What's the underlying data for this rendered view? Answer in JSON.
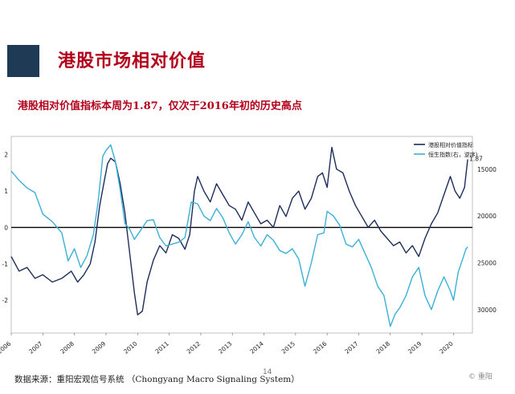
{
  "header": {
    "title": "港股市场相对价值"
  },
  "chart_data": {
    "type": "line",
    "title": "港股相对价值指标本周为1.87，仅次于2016年初的历史高点",
    "x_ticks": [
      "2006",
      "2007",
      "2008",
      "2009",
      "2010",
      "2011",
      "2012",
      "2013",
      "2014",
      "2015",
      "2016",
      "2017",
      "2018",
      "2019",
      "2020"
    ],
    "x_range": [
      2006.0,
      2020.6
    ],
    "y_left": {
      "ticks": [
        "2",
        "1",
        "0",
        "-1",
        "-2"
      ],
      "range": [
        -2.9,
        2.5
      ]
    },
    "y_right": {
      "ticks": [
        "15000",
        "20000",
        "25000",
        "30000"
      ],
      "range": [
        32500,
        11500
      ],
      "inverted": true
    },
    "grid": false,
    "legend_position": "top-right",
    "end_label": "1.87",
    "series": [
      {
        "name": "港股相对价值指标",
        "axis": "left",
        "color": "#1c2d5a",
        "points": [
          [
            2006.0,
            -0.8
          ],
          [
            2006.25,
            -1.2
          ],
          [
            2006.5,
            -1.1
          ],
          [
            2006.75,
            -1.4
          ],
          [
            2007.0,
            -1.3
          ],
          [
            2007.3,
            -1.5
          ],
          [
            2007.6,
            -1.4
          ],
          [
            2007.9,
            -1.2
          ],
          [
            2008.1,
            -1.5
          ],
          [
            2008.3,
            -1.3
          ],
          [
            2008.5,
            -1.0
          ],
          [
            2008.65,
            -0.4
          ],
          [
            2008.8,
            0.6
          ],
          [
            2008.95,
            1.3
          ],
          [
            2009.05,
            1.75
          ],
          [
            2009.15,
            1.9
          ],
          [
            2009.3,
            1.8
          ],
          [
            2009.45,
            1.2
          ],
          [
            2009.6,
            0.4
          ],
          [
            2009.75,
            -0.7
          ],
          [
            2009.9,
            -1.8
          ],
          [
            2010.0,
            -2.4
          ],
          [
            2010.15,
            -2.3
          ],
          [
            2010.3,
            -1.5
          ],
          [
            2010.5,
            -0.9
          ],
          [
            2010.7,
            -0.5
          ],
          [
            2010.9,
            -0.7
          ],
          [
            2011.1,
            -0.2
          ],
          [
            2011.3,
            -0.3
          ],
          [
            2011.5,
            -0.6
          ],
          [
            2011.65,
            -0.2
          ],
          [
            2011.8,
            1.0
          ],
          [
            2011.9,
            1.4
          ],
          [
            2012.1,
            1.0
          ],
          [
            2012.3,
            0.7
          ],
          [
            2012.5,
            1.2
          ],
          [
            2012.7,
            0.9
          ],
          [
            2012.9,
            0.6
          ],
          [
            2013.1,
            0.5
          ],
          [
            2013.3,
            0.2
          ],
          [
            2013.5,
            0.7
          ],
          [
            2013.7,
            0.4
          ],
          [
            2013.9,
            0.1
          ],
          [
            2014.1,
            0.2
          ],
          [
            2014.3,
            0.0
          ],
          [
            2014.5,
            0.6
          ],
          [
            2014.7,
            0.3
          ],
          [
            2014.9,
            0.8
          ],
          [
            2015.1,
            1.0
          ],
          [
            2015.3,
            0.5
          ],
          [
            2015.5,
            0.8
          ],
          [
            2015.7,
            1.4
          ],
          [
            2015.85,
            1.5
          ],
          [
            2016.0,
            1.1
          ],
          [
            2016.15,
            2.2
          ],
          [
            2016.3,
            1.6
          ],
          [
            2016.5,
            1.5
          ],
          [
            2016.7,
            1.0
          ],
          [
            2016.9,
            0.6
          ],
          [
            2017.1,
            0.3
          ],
          [
            2017.3,
            0.0
          ],
          [
            2017.5,
            0.2
          ],
          [
            2017.7,
            -0.1
          ],
          [
            2017.9,
            -0.3
          ],
          [
            2018.1,
            -0.5
          ],
          [
            2018.3,
            -0.4
          ],
          [
            2018.5,
            -0.7
          ],
          [
            2018.7,
            -0.5
          ],
          [
            2018.9,
            -0.8
          ],
          [
            2019.1,
            -0.3
          ],
          [
            2019.3,
            0.1
          ],
          [
            2019.5,
            0.4
          ],
          [
            2019.7,
            0.9
          ],
          [
            2019.9,
            1.4
          ],
          [
            2020.05,
            1.0
          ],
          [
            2020.2,
            0.8
          ],
          [
            2020.35,
            1.1
          ],
          [
            2020.45,
            1.87
          ]
        ]
      },
      {
        "name": "恒生指数(右，逆序)",
        "axis": "right",
        "color": "#3bb0d6",
        "points": [
          [
            2006.0,
            15200
          ],
          [
            2006.25,
            16200
          ],
          [
            2006.5,
            17000
          ],
          [
            2006.75,
            17500
          ],
          [
            2007.0,
            19800
          ],
          [
            2007.3,
            20600
          ],
          [
            2007.6,
            21800
          ],
          [
            2007.8,
            24800
          ],
          [
            2008.0,
            23500
          ],
          [
            2008.2,
            25500
          ],
          [
            2008.4,
            24200
          ],
          [
            2008.6,
            22000
          ],
          [
            2008.75,
            18500
          ],
          [
            2008.9,
            13600
          ],
          [
            2009.0,
            13000
          ],
          [
            2009.15,
            12400
          ],
          [
            2009.3,
            14200
          ],
          [
            2009.45,
            17200
          ],
          [
            2009.6,
            20800
          ],
          [
            2009.75,
            21400
          ],
          [
            2009.9,
            22500
          ],
          [
            2010.1,
            21500
          ],
          [
            2010.3,
            20500
          ],
          [
            2010.5,
            20400
          ],
          [
            2010.7,
            22300
          ],
          [
            2010.9,
            23200
          ],
          [
            2011.1,
            23000
          ],
          [
            2011.3,
            22800
          ],
          [
            2011.5,
            22300
          ],
          [
            2011.7,
            18500
          ],
          [
            2011.9,
            18700
          ],
          [
            2012.1,
            20000
          ],
          [
            2012.3,
            20500
          ],
          [
            2012.5,
            19200
          ],
          [
            2012.7,
            20200
          ],
          [
            2012.9,
            21800
          ],
          [
            2013.1,
            23000
          ],
          [
            2013.3,
            22000
          ],
          [
            2013.5,
            20600
          ],
          [
            2013.7,
            22300
          ],
          [
            2013.9,
            23200
          ],
          [
            2014.1,
            22000
          ],
          [
            2014.3,
            22600
          ],
          [
            2014.5,
            23700
          ],
          [
            2014.7,
            24000
          ],
          [
            2014.9,
            23500
          ],
          [
            2015.1,
            24600
          ],
          [
            2015.3,
            27500
          ],
          [
            2015.5,
            25000
          ],
          [
            2015.7,
            22000
          ],
          [
            2015.9,
            21800
          ],
          [
            2016.0,
            19500
          ],
          [
            2016.2,
            20000
          ],
          [
            2016.4,
            21000
          ],
          [
            2016.6,
            23000
          ],
          [
            2016.8,
            23300
          ],
          [
            2017.0,
            22500
          ],
          [
            2017.2,
            24000
          ],
          [
            2017.4,
            25500
          ],
          [
            2017.6,
            27500
          ],
          [
            2017.8,
            28500
          ],
          [
            2018.0,
            31800
          ],
          [
            2018.15,
            30500
          ],
          [
            2018.3,
            29800
          ],
          [
            2018.5,
            28500
          ],
          [
            2018.7,
            26500
          ],
          [
            2018.9,
            25500
          ],
          [
            2019.1,
            28500
          ],
          [
            2019.3,
            30000
          ],
          [
            2019.5,
            28000
          ],
          [
            2019.7,
            26500
          ],
          [
            2019.9,
            28000
          ],
          [
            2020.0,
            29000
          ],
          [
            2020.15,
            26000
          ],
          [
            2020.3,
            24500
          ],
          [
            2020.4,
            23500
          ],
          [
            2020.45,
            23300
          ]
        ]
      }
    ]
  },
  "footer": {
    "source": "数据来源：重阳宏观信号系统 （Chongyang Macro Signaling System）",
    "page": "14",
    "logo": "© 重阳"
  }
}
